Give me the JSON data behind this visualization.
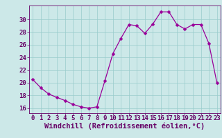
{
  "x": [
    0,
    1,
    2,
    3,
    4,
    5,
    6,
    7,
    8,
    9,
    10,
    11,
    12,
    13,
    14,
    15,
    16,
    17,
    18,
    19,
    20,
    21,
    22,
    23
  ],
  "y": [
    20.5,
    19.2,
    18.2,
    17.7,
    17.2,
    16.6,
    16.2,
    16.0,
    16.2,
    20.3,
    24.6,
    27.0,
    29.2,
    29.0,
    27.8,
    29.3,
    31.2,
    31.2,
    29.2,
    28.5,
    29.2,
    29.2,
    26.2,
    20.0
  ],
  "line_color": "#990099",
  "marker": "D",
  "marker_size": 2.5,
  "bg_color": "#cce8e8",
  "grid_color": "#99cccc",
  "xlabel": "Windchill (Refroidissement éolien,°C)",
  "xlabel_color": "#660066",
  "xlabel_fontsize": 7.5,
  "tick_color": "#660066",
  "tick_fontsize": 6.5,
  "yticks": [
    16,
    18,
    20,
    22,
    24,
    26,
    28,
    30
  ],
  "ylim": [
    15.2,
    32.2
  ],
  "xlim": [
    -0.5,
    23.5
  ],
  "xticks": [
    0,
    1,
    2,
    3,
    4,
    5,
    6,
    7,
    8,
    9,
    10,
    11,
    12,
    13,
    14,
    15,
    16,
    17,
    18,
    19,
    20,
    21,
    22,
    23
  ]
}
